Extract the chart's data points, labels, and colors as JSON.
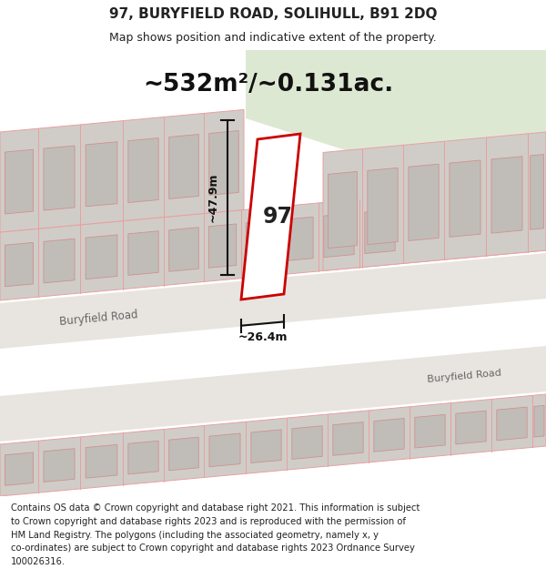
{
  "title_line1": "97, BURYFIELD ROAD, SOLIHULL, B91 2DQ",
  "title_line2": "Map shows position and indicative extent of the property.",
  "area_text": "~532m²/~0.131ac.",
  "label_97": "97",
  "dim_vertical": "~47.9m",
  "dim_horizontal": "~26.4m",
  "road_label1": "Buryfield Road",
  "road_label2": "Buryfield Road",
  "footer_lines": [
    "Contains OS data © Crown copyright and database right 2021. This information is subject",
    "to Crown copyright and database rights 2023 and is reproduced with the permission of",
    "HM Land Registry. The polygons (including the associated geometry, namely x, y",
    "co-ordinates) are subject to Crown copyright and database rights 2023 Ordnance Survey",
    "100026316."
  ],
  "map_bg": "#f0ede8",
  "building_fill": "#d0cdc8",
  "building_stroke": "#e8a0a0",
  "inner_fill": "#c0bdb8",
  "inner_stroke": "#d09090",
  "road_fill": "#e8e5e0",
  "property_stroke": "#cc0000",
  "property_fill": "white",
  "green_fill": "#dde8d3",
  "title_color": "#222222",
  "footer_color": "#222222",
  "road_text_color": "#666666",
  "road_slope": 0.09166
}
